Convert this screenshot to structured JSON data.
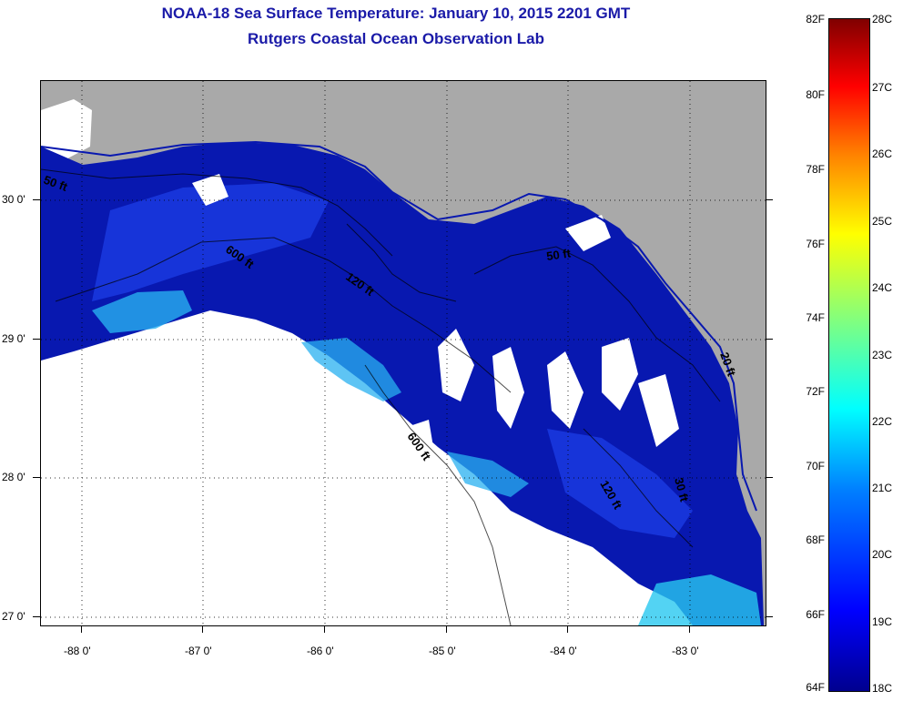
{
  "title": {
    "line1": "NOAA-18 Sea Surface Temperature:  January 10, 2015 2201 GMT",
    "line2": "Rutgers Coastal Ocean Observation Lab"
  },
  "axes": {
    "y_labels": [
      "30 0'",
      "29 0'",
      "28 0'",
      "27 0'"
    ],
    "x_labels": [
      "-88 0'",
      "-87 0'",
      "-86 0'",
      "-85 0'",
      "-84 0'",
      "-83 0'"
    ]
  },
  "contours": {
    "c50_west": "50 ft",
    "c600_nw": "600 ft",
    "c120_center": "120 ft",
    "c50_east": "50 ft",
    "c600_south": "600 ft",
    "c120_south": "120 ft",
    "c30_south": "30 ft",
    "c20_east": "20 ft"
  },
  "colorbar": {
    "fahrenheit": [
      "82F",
      "80F",
      "78F",
      "76F",
      "74F",
      "72F",
      "70F",
      "68F",
      "66F",
      "64F"
    ],
    "celsius": [
      "28C",
      "27C",
      "26C",
      "25C",
      "24C",
      "23C",
      "22C",
      "21C",
      "20C",
      "19C",
      "18C"
    ]
  },
  "colors": {
    "title": "#1a1aa8",
    "land": "#a9a9a9",
    "ocean_deep_blue": "#0818b0",
    "ocean_mid_blue": "#1a3ae0",
    "ocean_cyan": "#28b0f0",
    "cloud": "#ffffff"
  }
}
